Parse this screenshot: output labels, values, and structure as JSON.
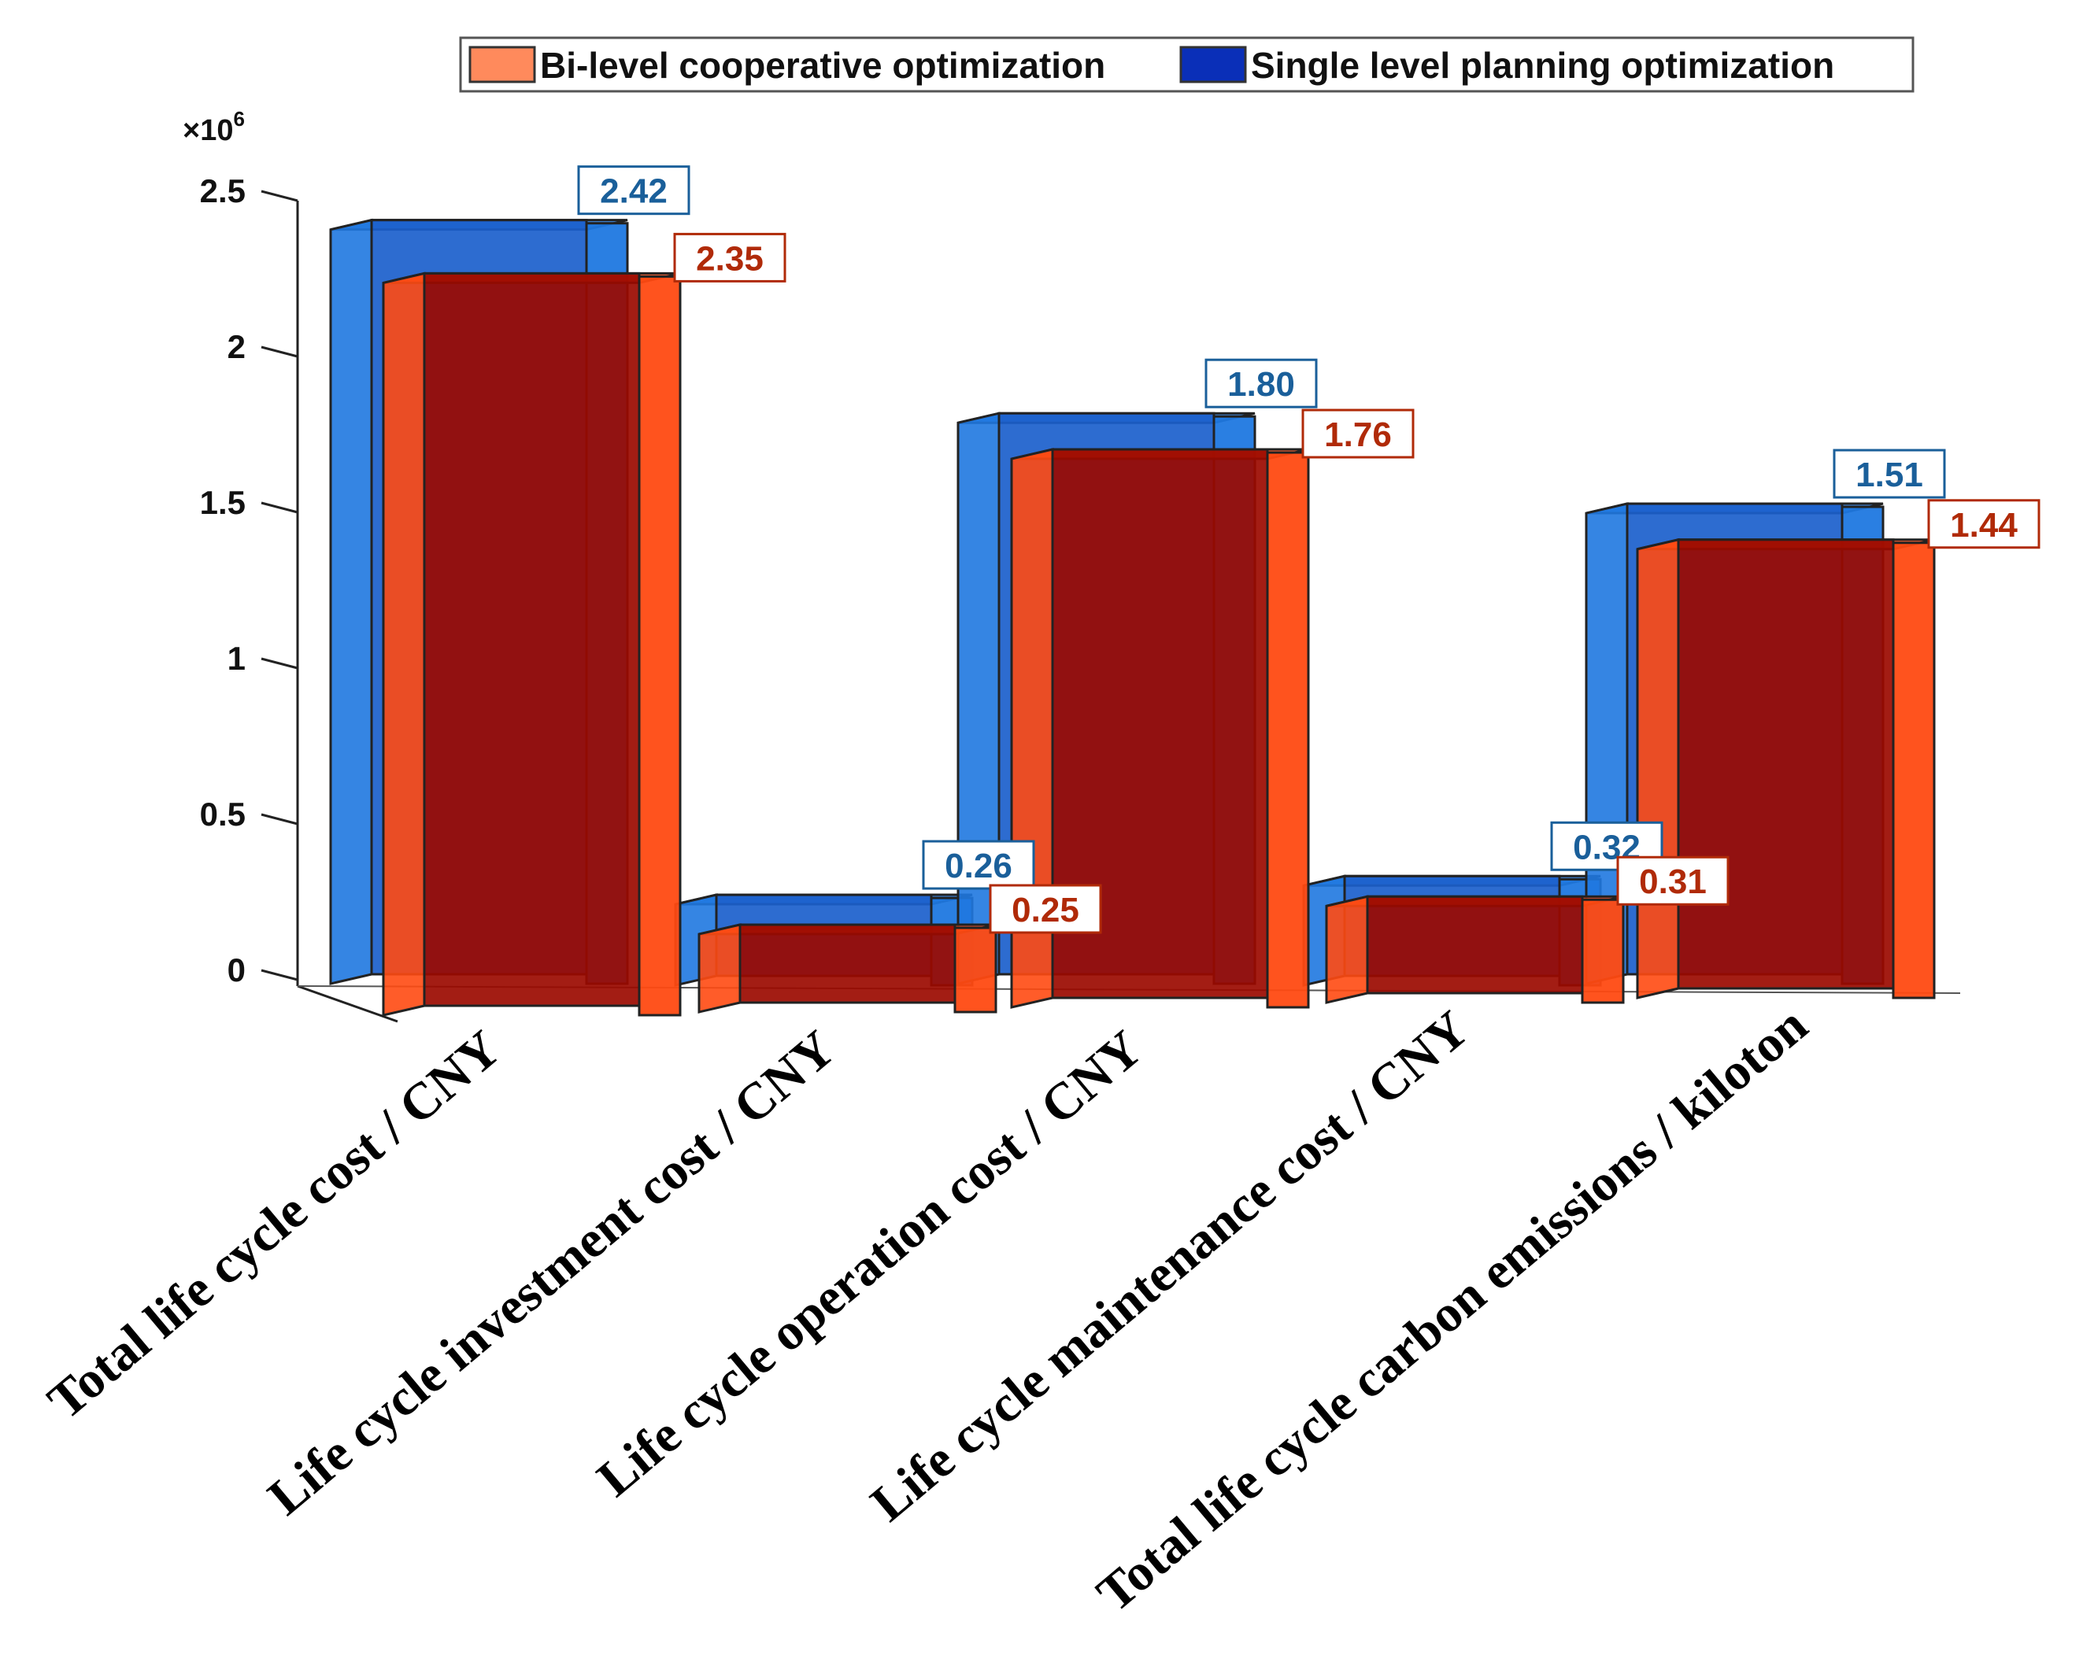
{
  "chart_data": {
    "type": "bar",
    "title": "",
    "xlabel": "",
    "ylabel": "",
    "y_multiplier": "×10",
    "y_exponent": "6",
    "ylim": [
      0,
      2.5
    ],
    "yticks": [
      0,
      0.5,
      1,
      1.5,
      2,
      2.5
    ],
    "ytick_labels": [
      "0",
      "0.5",
      "1",
      "1.5",
      "2",
      "2.5"
    ],
    "grid": false,
    "legend_position": "top-right",
    "categories": [
      "Total life cycle cost  / CNY",
      "Life cycle investment cost / CNY",
      "Life cycle operation cost  / CNY",
      "Life cycle maintenance cost / CNY",
      "Total life cycle carbon emissions / kiloton"
    ],
    "series": [
      {
        "name": "Single level planning optimization",
        "color": "#1f6fd6",
        "label_color": "#1a5f9a",
        "values": [
          2.42,
          0.26,
          1.8,
          0.32,
          1.51
        ],
        "labels": [
          "2.42",
          "0.26",
          "1.80",
          "0.32",
          "1.51"
        ]
      },
      {
        "name": "Bi-level cooperative optimization",
        "color": "#ff4010",
        "label_color": "#b02a08",
        "values": [
          2.35,
          0.25,
          1.76,
          0.31,
          1.44
        ],
        "labels": [
          "2.35",
          "0.25",
          "1.76",
          "0.31",
          "1.44"
        ]
      }
    ]
  },
  "legend": {
    "items": [
      {
        "label": "Bi-level cooperative optimization",
        "color": "#ff8a5c"
      },
      {
        "label": "Single level planning optimization",
        "color": "#0a2fb8"
      }
    ]
  },
  "colors": {
    "axis": "#222222",
    "bar_front_red": "#9b0a00",
    "bar_side_red": "#ff4a12",
    "bar_front_blue": "#1b5fcc",
    "bar_side_blue": "#1f78e0"
  }
}
